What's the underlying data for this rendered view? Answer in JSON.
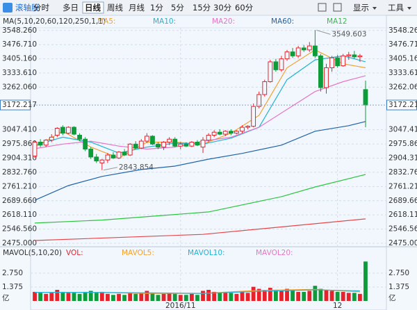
{
  "toolbar": {
    "logo": "滚轴股",
    "tabs": [
      "分时",
      "多日",
      "日线",
      "周线",
      "月线",
      "1分",
      "5分",
      "15分",
      "30分",
      "60分"
    ],
    "active_tab": 2,
    "menus": [
      "显示",
      "工具"
    ]
  },
  "chart_data": [
    {
      "type": "candlestick",
      "title": "MA(5,10,20,60,120,250,1,1)",
      "categories": [
        null,
        null,
        null,
        null,
        null,
        null,
        null,
        null,
        null,
        null,
        null,
        null,
        null,
        null,
        null,
        null,
        null,
        null,
        null,
        null,
        null,
        null,
        null,
        null,
        null,
        null,
        "2016/11",
        null,
        null,
        null,
        null,
        null,
        null,
        null,
        null,
        null,
        null,
        null,
        null,
        null,
        null,
        null,
        null,
        null,
        null,
        null,
        null,
        null,
        null,
        null,
        null,
        null,
        null,
        null,
        "12",
        null,
        null,
        null,
        null,
        null
      ],
      "open": [
        2915,
        2985,
        2970,
        2995,
        3020,
        3060,
        3030,
        3060,
        3020,
        3000,
        2950,
        2910,
        2880,
        2895,
        2920,
        2905,
        2935,
        2920,
        2975,
        2955,
        2990,
        3015,
        2975,
        2960,
        2985,
        3000,
        2965,
        2975,
        2965,
        2985,
        2960,
        2995,
        3020,
        3035,
        3025,
        3040,
        3030,
        3040,
        3060,
        3065,
        3165,
        3225,
        3290,
        3390,
        3350,
        3405,
        3440,
        3420,
        3460,
        3450,
        3470,
        3420,
        3260,
        3360,
        3410,
        3370,
        3420,
        3425,
        3415,
        3250
      ],
      "high": [
        2990,
        3000,
        3000,
        3025,
        3060,
        3070,
        3065,
        3065,
        3030,
        3010,
        2960,
        2925,
        2900,
        2930,
        2935,
        2940,
        2950,
        2980,
        2990,
        3000,
        3030,
        3020,
        2985,
        2990,
        3010,
        3010,
        2985,
        2985,
        2990,
        2995,
        3010,
        3030,
        3045,
        3050,
        3045,
        3050,
        3045,
        3070,
        3070,
        3180,
        3240,
        3300,
        3400,
        3405,
        3420,
        3450,
        3460,
        3470,
        3475,
        3490,
        3549.603,
        3430,
        3380,
        3420,
        3425,
        3430,
        3440,
        3445,
        3430,
        3295
      ],
      "low": [
        2905,
        2960,
        2960,
        2985,
        3010,
        3020,
        3025,
        3020,
        2990,
        2940,
        2900,
        2880,
        2843.854,
        2880,
        2900,
        2900,
        2915,
        2915,
        2950,
        2950,
        2980,
        2970,
        2950,
        2945,
        2970,
        2960,
        2950,
        2960,
        2960,
        2965,
        2930,
        2985,
        3010,
        3020,
        3015,
        3020,
        3025,
        3030,
        3050,
        3060,
        3155,
        3215,
        3285,
        3340,
        3340,
        3395,
        3410,
        3410,
        3440,
        3440,
        3410,
        3240,
        3230,
        3340,
        3360,
        3365,
        3400,
        3405,
        3390,
        3060
      ],
      "close": [
        2985,
        2970,
        2995,
        3010,
        3055,
        3030,
        3060,
        3025,
        3000,
        2950,
        2910,
        2890,
        2895,
        2920,
        2905,
        2935,
        2920,
        2975,
        2955,
        2990,
        3015,
        2975,
        2960,
        2985,
        3000,
        2965,
        2975,
        2965,
        2985,
        2970,
        2995,
        3020,
        3035,
        3025,
        3040,
        3030,
        3040,
        3060,
        3065,
        3165,
        3225,
        3290,
        3390,
        3350,
        3405,
        3440,
        3420,
        3460,
        3450,
        3470,
        3420,
        3260,
        3360,
        3410,
        3370,
        3420,
        3425,
        3415,
        3420,
        3172.217
      ],
      "up_color": "#e8222a",
      "down_color": "#0e9b3a",
      "lines": [
        {
          "name": "MA5:",
          "color": "#f2a12e",
          "x": [
            0,
            5,
            10,
            15,
            20,
            25,
            30,
            35,
            40,
            45,
            50,
            55,
            59
          ],
          "values": [
            2960,
            3040,
            2960,
            2905,
            2985,
            2985,
            2975,
            3030,
            3120,
            3360,
            3450,
            3380,
            3360
          ]
        },
        {
          "name": "MA10:",
          "color": "#24b3d3",
          "x": [
            0,
            5,
            10,
            15,
            20,
            25,
            30,
            35,
            40,
            45,
            50,
            55,
            59
          ],
          "values": [
            2970,
            3010,
            2985,
            2930,
            2960,
            2980,
            2975,
            3005,
            3060,
            3300,
            3400,
            3420,
            3390
          ]
        },
        {
          "name": "MA20:",
          "color": "#e476c6",
          "x": [
            0,
            5,
            10,
            15,
            20,
            25,
            30,
            35,
            40,
            45,
            50,
            55,
            59
          ],
          "values": [
            2952,
            2975,
            2990,
            2965,
            2950,
            2960,
            2990,
            3010,
            3060,
            3150,
            3240,
            3290,
            3320
          ]
        },
        {
          "name": "MA60:",
          "color": "#1f63a8",
          "x": [
            0,
            6,
            12,
            19,
            25,
            31,
            37,
            44,
            50,
            56,
            59
          ],
          "values": [
            2692,
            2766,
            2812,
            2847,
            2864,
            2899,
            2928,
            2970,
            3040,
            3068,
            3089
          ]
        },
        {
          "name": "MA12",
          "color": "#2cc43e",
          "x": [
            0,
            12,
            25,
            31,
            44,
            50,
            59
          ],
          "values": [
            2577,
            2592,
            2620,
            2633,
            2710,
            2759,
            2822
          ]
        },
        {
          "color": "#e4464a",
          "x": [
            0,
            30,
            59
          ],
          "values": [
            2489,
            2520,
            2598
          ]
        }
      ],
      "ylim": [
        2475,
        3572
      ],
      "yticks": [
        {
          "value": 2475,
          "label": "2475.000"
        },
        {
          "value": 2546.56,
          "label": "2546.560"
        },
        {
          "value": 2618.11,
          "label": "2618.110"
        },
        {
          "value": 2689.66,
          "label": "2689.660"
        },
        {
          "value": 2761.21,
          "label": "2761.210"
        },
        {
          "value": 2832.76,
          "label": "2832.760"
        },
        {
          "value": 2904.31,
          "label": "2904.310"
        },
        {
          "value": 2975.86,
          "label": "2975.860"
        },
        {
          "value": 3047.41,
          "label": "3047.410"
        },
        {
          "value": 3262.06,
          "label": "3262.060"
        },
        {
          "value": 3333.61,
          "label": "3333.610"
        },
        {
          "value": 3405.16,
          "label": "3405.160"
        },
        {
          "value": 3476.71,
          "label": "3476.710"
        },
        {
          "value": 3548.26,
          "label": "3548.260"
        }
      ],
      "grid": true
    },
    {
      "type": "bar",
      "title": "MAVOL(5,10,20)",
      "name": "VOL:",
      "color": "#e8222a",
      "y_unit": "亿",
      "values": [
        0.9,
        0.8,
        0.7,
        0.8,
        1.1,
        0.9,
        0.8,
        0.8,
        0.7,
        0.9,
        1.0,
        0.8,
        0.9,
        0.7,
        0.6,
        0.7,
        0.6,
        0.8,
        0.7,
        0.8,
        1.0,
        0.8,
        0.6,
        0.7,
        0.8,
        0.7,
        0.6,
        0.6,
        0.7,
        0.6,
        1.0,
        1.1,
        0.9,
        0.8,
        0.9,
        0.8,
        0.7,
        0.9,
        0.8,
        1.4,
        1.2,
        1.1,
        1.3,
        1.1,
        1.0,
        1.2,
        1.0,
        0.9,
        0.9,
        1.0,
        1.5,
        1.2,
        1.1,
        1.0,
        0.9,
        0.9,
        0.8,
        0.8,
        0.7,
        3.9
      ],
      "lines": [
        {
          "name": "MAVOL5:",
          "color": "#f2a12e",
          "x": [
            0,
            10,
            20,
            30,
            40,
            50,
            58
          ],
          "values": [
            0.85,
            0.85,
            0.75,
            0.75,
            1.05,
            1.15,
            0.9
          ]
        },
        {
          "name": "MAVOL10:",
          "color": "#24b3d3",
          "x": [
            0,
            10,
            20,
            30,
            40,
            50,
            58
          ],
          "values": [
            0.85,
            0.85,
            0.8,
            0.75,
            0.95,
            1.1,
            1.0
          ]
        },
        {
          "name": "MAVOL20:",
          "color": "#e476c6",
          "x": [],
          "values": []
        }
      ],
      "ylim": [
        0,
        4.33
      ],
      "yticks": [
        {
          "value": 1.375,
          "label": "1.375"
        },
        {
          "value": 2.75,
          "label": "2.750"
        }
      ],
      "grid": true
    }
  ]
}
